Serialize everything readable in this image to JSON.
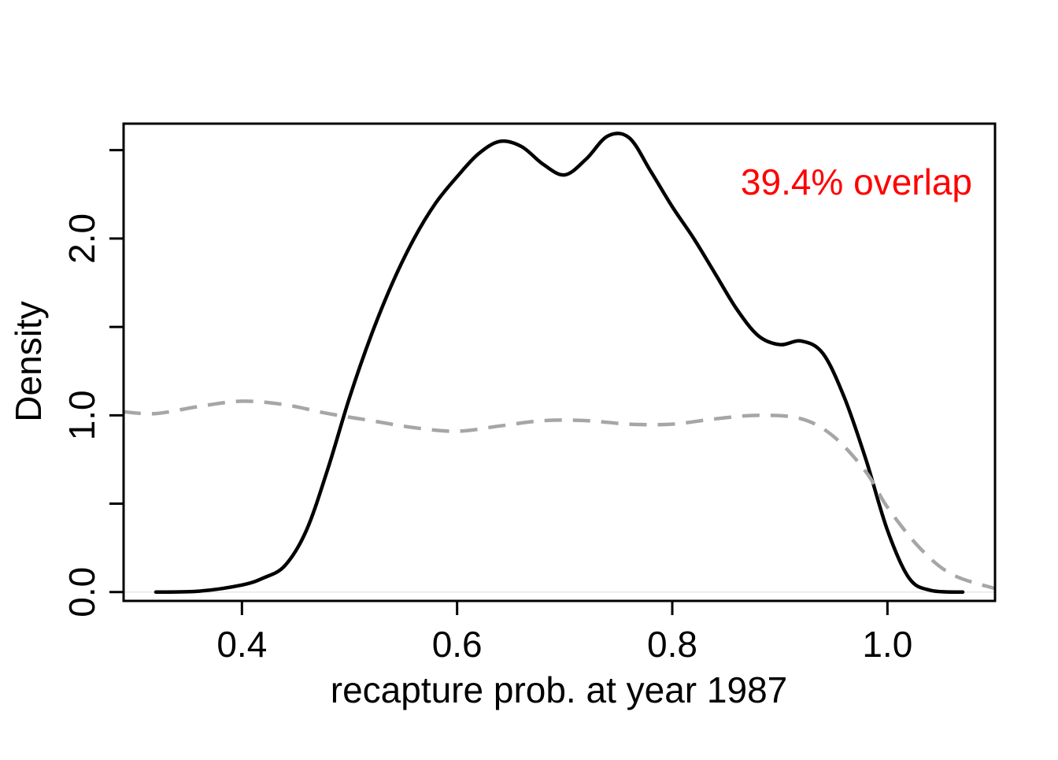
{
  "chart_data": {
    "type": "line",
    "title": "",
    "xlabel": "recapture prob. at year 1987",
    "ylabel": "Density",
    "xlim": [
      0.29,
      1.1
    ],
    "ylim": [
      -0.05,
      2.65
    ],
    "x_ticks": [
      0.4,
      0.6,
      0.8,
      1.0
    ],
    "x_tick_labels": [
      "0.4",
      "0.6",
      "0.8",
      "1.0"
    ],
    "y_ticks": [
      0.0,
      0.5,
      1.0,
      1.5,
      2.0,
      2.5
    ],
    "y_tick_labels": [
      "0.0",
      "",
      "1.0",
      "",
      "2.0",
      ""
    ],
    "grid": false,
    "legend": null,
    "annotation": {
      "text": "39.4% overlap",
      "color": "#ff0000"
    },
    "baseline": {
      "y": 0,
      "color": "#e6e6e6"
    },
    "series": [
      {
        "style": "solid",
        "color": "#000000",
        "x": [
          0.32,
          0.36,
          0.4,
          0.42,
          0.44,
          0.46,
          0.48,
          0.5,
          0.52,
          0.54,
          0.56,
          0.58,
          0.6,
          0.62,
          0.64,
          0.66,
          0.68,
          0.7,
          0.72,
          0.74,
          0.76,
          0.78,
          0.8,
          0.82,
          0.84,
          0.86,
          0.88,
          0.9,
          0.92,
          0.94,
          0.96,
          0.98,
          1.0,
          1.02,
          1.04,
          1.07
        ],
        "y": [
          0.0,
          0.005,
          0.04,
          0.08,
          0.15,
          0.35,
          0.7,
          1.1,
          1.45,
          1.75,
          2.0,
          2.2,
          2.35,
          2.48,
          2.55,
          2.52,
          2.42,
          2.36,
          2.45,
          2.58,
          2.57,
          2.38,
          2.18,
          2.0,
          1.8,
          1.6,
          1.45,
          1.4,
          1.42,
          1.35,
          1.1,
          0.75,
          0.35,
          0.08,
          0.01,
          0.0
        ]
      },
      {
        "style": "dashed",
        "color": "#a6a6a6",
        "x": [
          0.29,
          0.32,
          0.36,
          0.4,
          0.44,
          0.48,
          0.52,
          0.56,
          0.6,
          0.64,
          0.68,
          0.72,
          0.76,
          0.8,
          0.84,
          0.88,
          0.92,
          0.95,
          0.98,
          1.0,
          1.03,
          1.06,
          1.1
        ],
        "y": [
          1.02,
          1.01,
          1.05,
          1.08,
          1.06,
          1.01,
          0.97,
          0.93,
          0.91,
          0.94,
          0.97,
          0.97,
          0.95,
          0.95,
          0.98,
          1.0,
          0.98,
          0.88,
          0.68,
          0.48,
          0.25,
          0.1,
          0.02
        ]
      }
    ]
  }
}
